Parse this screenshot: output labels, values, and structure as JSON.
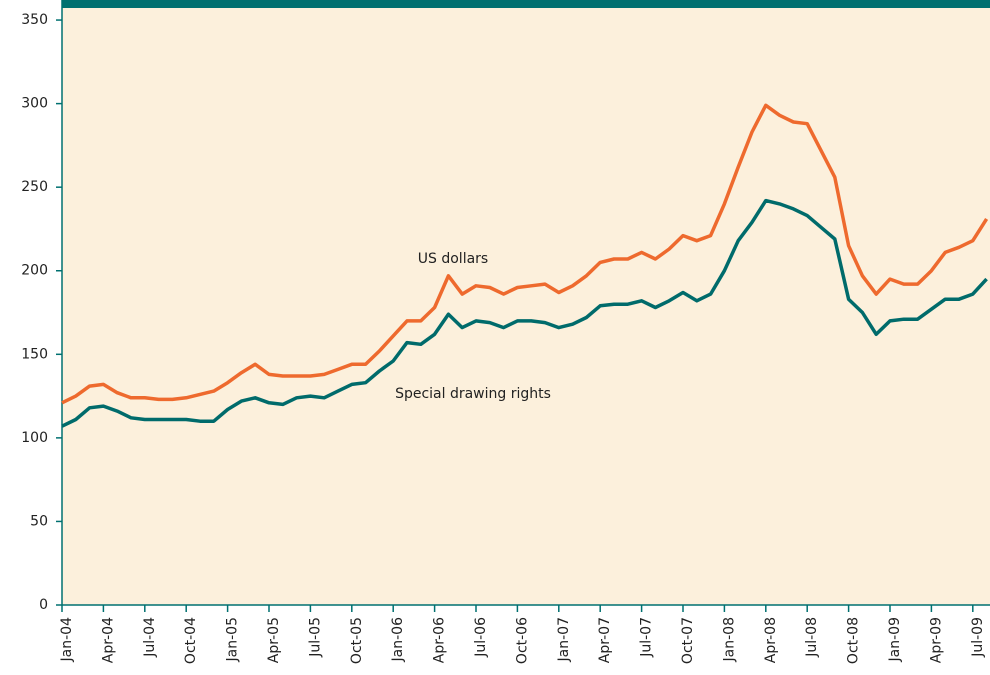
{
  "chart_data": {
    "type": "line",
    "categories": [
      "Jan-04",
      null,
      null,
      "Apr-04",
      null,
      null,
      "Jul-04",
      null,
      null,
      "Oct-04",
      null,
      null,
      "Jan-05",
      null,
      null,
      "Apr-05",
      null,
      null,
      "Jul-05",
      null,
      null,
      "Oct-05",
      null,
      null,
      "Jan-06",
      null,
      null,
      "Apr-06",
      null,
      null,
      "Jul-06",
      null,
      null,
      "Oct-06",
      null,
      null,
      "Jan-07",
      null,
      null,
      "Apr-07",
      null,
      null,
      "Jul-07",
      null,
      null,
      "Oct-07",
      null,
      null,
      "Jan-08",
      null,
      null,
      "Apr-08",
      null,
      null,
      "Jul-08",
      null,
      null,
      "Oct-08",
      null,
      null,
      "Jan-09",
      null,
      null,
      "Apr-09",
      null,
      null,
      "Jul-09",
      null
    ],
    "series": [
      {
        "name": "US dollars",
        "color": "#ee6a2e",
        "values": [
          121,
          125,
          131,
          132,
          127,
          124,
          124,
          123,
          123,
          124,
          126,
          128,
          133,
          139,
          144,
          138,
          137,
          137,
          137,
          138,
          141,
          144,
          144,
          152,
          161,
          170,
          170,
          178,
          197,
          186,
          191,
          190,
          186,
          190,
          191,
          192,
          187,
          191,
          197,
          205,
          207,
          207,
          211,
          207,
          213,
          221,
          218,
          221,
          240,
          262,
          283,
          299,
          293,
          289,
          288,
          272,
          256,
          215,
          197,
          186,
          195,
          192,
          192,
          200,
          211,
          214,
          218,
          231
        ]
      },
      {
        "name": "Special drawing rights",
        "color": "#006b6b",
        "values": [
          107,
          111,
          118,
          119,
          116,
          112,
          111,
          111,
          111,
          111,
          110,
          110,
          117,
          122,
          124,
          121,
          120,
          124,
          125,
          124,
          128,
          132,
          133,
          140,
          146,
          157,
          156,
          162,
          174,
          166,
          170,
          169,
          166,
          170,
          170,
          169,
          166,
          168,
          172,
          179,
          180,
          180,
          182,
          178,
          182,
          187,
          182,
          186,
          200,
          218,
          229,
          242,
          240,
          237,
          233,
          226,
          219,
          183,
          175,
          162,
          170,
          171,
          171,
          177,
          183,
          183,
          186,
          195
        ]
      }
    ],
    "ylim": [
      0,
      362
    ],
    "yticks": [
      0,
      50,
      100,
      150,
      200,
      250,
      300,
      350
    ],
    "grid": false
  }
}
